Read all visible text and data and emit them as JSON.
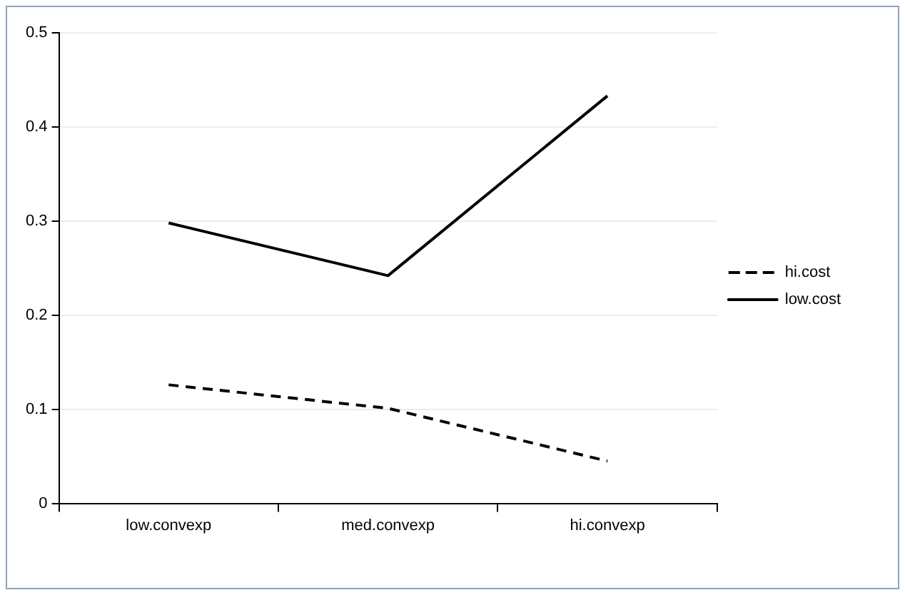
{
  "chart_data": {
    "type": "line",
    "categories": [
      "low.convexp",
      "med.convexp",
      "hi.convexp"
    ],
    "series": [
      {
        "name": "hi.cost",
        "color": "#000000",
        "line_style": "dashed",
        "values": [
          0.126,
          0.101,
          0.045
        ]
      },
      {
        "name": "low.cost",
        "color": "#000000",
        "line_style": "solid",
        "values": [
          0.298,
          0.242,
          0.433
        ]
      }
    ],
    "ylim": [
      0,
      0.5
    ],
    "yticks": [
      0,
      0.1,
      0.2,
      0.3,
      0.4,
      0.5
    ],
    "grid": "y",
    "legend": "right",
    "marker": "none"
  }
}
